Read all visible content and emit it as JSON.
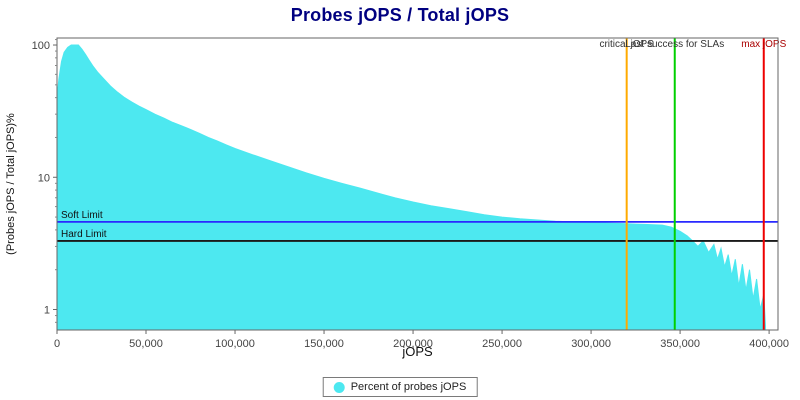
{
  "colors": {
    "title": "#000080",
    "axis_text": "#444444",
    "plot_border": "#666666"
  },
  "chart_data": {
    "type": "area",
    "title": "Probes jOPS / Total jOPS",
    "xlabel": "jOPS",
    "ylabel": "(Probes jOPS / Total jOPS)%",
    "y_scale": "log",
    "xlim": [
      0,
      405000
    ],
    "ylim": [
      0.7,
      113
    ],
    "grid": false,
    "legend_position": "bottom-center",
    "x_ticks": [
      0,
      50000,
      100000,
      150000,
      200000,
      250000,
      300000,
      350000,
      400000
    ],
    "x_tick_labels": [
      "0",
      "50,000",
      "100,000",
      "150,000",
      "200,000",
      "250,000",
      "300,000",
      "350,000",
      "400,000"
    ],
    "y_ticks": [
      1,
      10,
      100
    ],
    "y_tick_labels": [
      "1",
      "10",
      "100"
    ],
    "y_minor_ticks": [
      0.8,
      0.9,
      2,
      3,
      4,
      5,
      6,
      7,
      8,
      9,
      20,
      30,
      40,
      50,
      60,
      70,
      80,
      90,
      110
    ],
    "series": [
      {
        "name": "Percent of probes jOPS",
        "color": "#4de8f0",
        "points": [
          [
            0,
            40
          ],
          [
            1000,
            55
          ],
          [
            2500,
            75
          ],
          [
            4000,
            88
          ],
          [
            6000,
            96
          ],
          [
            8000,
            100
          ],
          [
            12000,
            100
          ],
          [
            14000,
            93
          ],
          [
            16000,
            85
          ],
          [
            18000,
            77
          ],
          [
            20000,
            70
          ],
          [
            23000,
            62
          ],
          [
            26000,
            56
          ],
          [
            30000,
            49
          ],
          [
            34000,
            44
          ],
          [
            38000,
            40
          ],
          [
            42000,
            37
          ],
          [
            46000,
            34.5
          ],
          [
            50000,
            32.5
          ],
          [
            55000,
            30
          ],
          [
            60000,
            28
          ],
          [
            65000,
            26
          ],
          [
            70000,
            24.5
          ],
          [
            75000,
            23
          ],
          [
            80000,
            21.5
          ],
          [
            85000,
            20
          ],
          [
            90000,
            18.8
          ],
          [
            95000,
            17.6
          ],
          [
            100000,
            16.5
          ],
          [
            110000,
            14.8
          ],
          [
            120000,
            13.3
          ],
          [
            130000,
            12.0
          ],
          [
            140000,
            10.8
          ],
          [
            150000,
            9.8
          ],
          [
            160000,
            9.0
          ],
          [
            170000,
            8.3
          ],
          [
            180000,
            7.6
          ],
          [
            190000,
            7.0
          ],
          [
            200000,
            6.5
          ],
          [
            210000,
            6.1
          ],
          [
            220000,
            5.8
          ],
          [
            230000,
            5.5
          ],
          [
            240000,
            5.2
          ],
          [
            250000,
            5.0
          ],
          [
            260000,
            4.85
          ],
          [
            270000,
            4.75
          ],
          [
            280000,
            4.65
          ],
          [
            290000,
            4.6
          ],
          [
            300000,
            4.55
          ],
          [
            310000,
            4.5
          ],
          [
            320000,
            4.45
          ],
          [
            330000,
            4.4
          ],
          [
            340000,
            4.35
          ],
          [
            345000,
            4.2
          ],
          [
            350000,
            3.9
          ],
          [
            354000,
            3.6
          ],
          [
            357000,
            3.3
          ],
          [
            360000,
            3.0
          ],
          [
            363000,
            3.3
          ],
          [
            366000,
            2.7
          ],
          [
            369000,
            3.1
          ],
          [
            371000,
            2.4
          ],
          [
            373000,
            2.9
          ],
          [
            375000,
            2.1
          ],
          [
            377000,
            2.6
          ],
          [
            379000,
            1.8
          ],
          [
            381000,
            2.4
          ],
          [
            383000,
            1.5
          ],
          [
            385000,
            2.2
          ],
          [
            387000,
            1.4
          ],
          [
            389000,
            2.0
          ],
          [
            391000,
            1.2
          ],
          [
            393000,
            1.7
          ],
          [
            395000,
            1.0
          ],
          [
            397000,
            1.3
          ],
          [
            398000,
            0.75
          ]
        ]
      }
    ],
    "h_lines": [
      {
        "name": "soft-limit",
        "label": "Soft Limit",
        "value": 4.6,
        "color": "#2929ff"
      },
      {
        "name": "hard-limit",
        "label": "Hard Limit",
        "value": 3.3,
        "color": "#1a1a1a"
      }
    ],
    "v_lines": [
      {
        "name": "critical-jops",
        "label": "critical jOPS",
        "value": 320000,
        "color": "#ffaa00",
        "label_color": "#333333"
      },
      {
        "name": "last-success-slas",
        "label": "Last success for SLAs",
        "value": 347000,
        "color": "#00d000",
        "label_color": "#333333"
      },
      {
        "name": "max-jops",
        "label": "max jOPS",
        "value": 397000,
        "color": "#ee0000",
        "label_color": "#aa0000"
      }
    ]
  },
  "legend": {
    "items": [
      {
        "label": "Percent of probes jOPS",
        "color": "#4de8f0"
      }
    ]
  }
}
